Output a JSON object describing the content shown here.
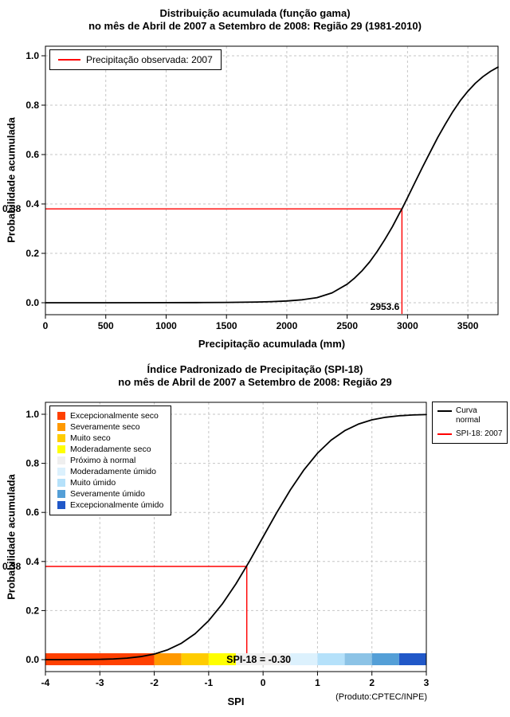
{
  "chart_data": [
    {
      "type": "line",
      "title": "Distribuição acumulada (função gama)",
      "subtitle": "no mês de Abril de 2007 a Setembro de 2008: Região 29 (1981-2010)",
      "xlabel": "Precipitação acumulada (mm)",
      "ylabel": "Probabilidade acumulada",
      "xlim": [
        0,
        3750
      ],
      "ylim": [
        0,
        1
      ],
      "grid": true,
      "xticks": [
        0,
        500,
        1000,
        1500,
        2000,
        2500,
        3000,
        3500
      ],
      "xtick_labels": [
        "0",
        "500",
        "1000",
        "1500",
        "2000",
        "2500",
        "3000",
        "3500"
      ],
      "yticks": [
        0,
        0.2,
        0.4,
        0.6,
        0.8,
        1
      ],
      "ytick_labels": [
        "0.0",
        "0.2",
        "0.4",
        "0.6",
        "0.8",
        "1.0"
      ],
      "legend": [
        {
          "label": "Precipitação observada: 2007",
          "color": "#ff0000"
        }
      ],
      "series": [
        {
          "name": "distribuicao-gama-acumulada",
          "color": "#000000",
          "points": [
            [
              0,
              0
            ],
            [
              500,
              0.0001
            ],
            [
              1000,
              0.0003
            ],
            [
              1250,
              0.0006
            ],
            [
              1500,
              0.0012
            ],
            [
              1625,
              0.0018
            ],
            [
              1750,
              0.0028
            ],
            [
              1875,
              0.0045
            ],
            [
              2000,
              0.0072
            ],
            [
              2125,
              0.0118
            ],
            [
              2250,
              0.0205
            ],
            [
              2375,
              0.0401
            ],
            [
              2500,
              0.0753
            ],
            [
              2562,
              0.1003
            ],
            [
              2625,
              0.1303
            ],
            [
              2688,
              0.166
            ],
            [
              2750,
              0.2083
            ],
            [
              2812,
              0.2559
            ],
            [
              2875,
              0.3085
            ],
            [
              2938,
              0.3669
            ],
            [
              2953.6,
              0.38
            ],
            [
              3000,
              0.4256
            ],
            [
              3062,
              0.4875
            ],
            [
              3125,
              0.5497
            ],
            [
              3188,
              0.6103
            ],
            [
              3250,
              0.6691
            ],
            [
              3312,
              0.7224
            ],
            [
              3375,
              0.7734
            ],
            [
              3438,
              0.8186
            ],
            [
              3500,
              0.856
            ],
            [
              3562,
              0.8888
            ],
            [
              3625,
              0.9154
            ],
            [
              3688,
              0.937
            ],
            [
              3750,
              0.9542
            ]
          ]
        }
      ],
      "marker": {
        "x": 2953.6,
        "y": 0.38,
        "x_label": "2953.6",
        "y_label": "0.38",
        "color": "#ff0000"
      }
    },
    {
      "type": "line",
      "title": "Índice Padronizado de Precipitação (SPI-18)",
      "subtitle": "no mês de Abril de 2007 a Setembro de 2008: Região 29",
      "xlabel": "SPI",
      "ylabel": "Probabilidade acumulada",
      "footer": "(Produto:CPTEC/INPE)",
      "xlim": [
        -4,
        3
      ],
      "ylim": [
        0,
        1
      ],
      "grid": true,
      "xticks": [
        -4,
        -3,
        -2,
        -1,
        0,
        1,
        2,
        3
      ],
      "xtick_labels": [
        "-4",
        "-3",
        "-2",
        "-1",
        "0",
        "1",
        "2",
        "3"
      ],
      "yticks": [
        0,
        0.2,
        0.4,
        0.6,
        0.8,
        1
      ],
      "ytick_labels": [
        "0.0",
        "0.2",
        "0.4",
        "0.6",
        "0.8",
        "1.0"
      ],
      "legend": [
        {
          "lines": [
            "Curva",
            "normal"
          ],
          "color": "#000000"
        },
        {
          "lines": [
            "SPI-18: 2007"
          ],
          "color": "#ff0000"
        }
      ],
      "categories": [
        {
          "label": "Excepcionalmente seco",
          "color": "#ff4000"
        },
        {
          "label": "Severamente seco",
          "color": "#ff9900"
        },
        {
          "label": "Muito seco",
          "color": "#ffcc00"
        },
        {
          "label": "Moderadamente seco",
          "color": "#ffff00"
        },
        {
          "label": "Próximo à normal",
          "color": "#efefef"
        },
        {
          "label": "Moderadamente úmido",
          "color": "#dcf1fd"
        },
        {
          "label": "Muito úmido",
          "color": "#b5e1fa"
        },
        {
          "label": "Severamente úmido",
          "color": "#549fd7"
        },
        {
          "label": "Excepcionalmente úmido",
          "color": "#2158c8"
        }
      ],
      "spi_bar": [
        {
          "from": -4,
          "to": -2,
          "color": "#ff4000"
        },
        {
          "from": -2,
          "to": -1.5,
          "color": "#ff9900"
        },
        {
          "from": -1.5,
          "to": -1,
          "color": "#ffcc00"
        },
        {
          "from": -1,
          "to": -0.5,
          "color": "#ffff00"
        },
        {
          "from": -0.5,
          "to": 0.5,
          "color": "#efefef"
        },
        {
          "from": 0.5,
          "to": 1,
          "color": "#dcf1fd"
        },
        {
          "from": 1,
          "to": 1.5,
          "color": "#b5e1fa"
        },
        {
          "from": 1.5,
          "to": 2,
          "color": "#8cc3e6"
        },
        {
          "from": 2,
          "to": 2.5,
          "color": "#549fd7"
        },
        {
          "from": 2.5,
          "to": 3,
          "color": "#2158c8"
        }
      ],
      "series": [
        {
          "name": "curva-normal",
          "color": "#000000",
          "points": [
            [
              -4,
              0.0
            ],
            [
              -3.75,
              0.0001
            ],
            [
              -3.5,
              0.0002
            ],
            [
              -3.25,
              0.0006
            ],
            [
              -3,
              0.0013
            ],
            [
              -2.75,
              0.003
            ],
            [
              -2.5,
              0.0062
            ],
            [
              -2.25,
              0.0122
            ],
            [
              -2,
              0.0228
            ],
            [
              -1.75,
              0.0401
            ],
            [
              -1.5,
              0.0668
            ],
            [
              -1.25,
              0.1056
            ],
            [
              -1,
              0.1587
            ],
            [
              -0.75,
              0.2266
            ],
            [
              -0.5,
              0.3085
            ],
            [
              -0.25,
              0.4013
            ],
            [
              0,
              0.5
            ],
            [
              0.25,
              0.5987
            ],
            [
              0.5,
              0.6915
            ],
            [
              0.75,
              0.7734
            ],
            [
              1,
              0.8413
            ],
            [
              1.25,
              0.8944
            ],
            [
              1.5,
              0.9332
            ],
            [
              1.75,
              0.9599
            ],
            [
              2,
              0.9772
            ],
            [
              2.25,
              0.9878
            ],
            [
              2.5,
              0.9938
            ],
            [
              2.75,
              0.997
            ],
            [
              3,
              0.9987
            ]
          ]
        }
      ],
      "marker": {
        "x": -0.3,
        "y": 0.38,
        "y_label": "0.38",
        "annotation": "SPI-18 = -0.30",
        "color": "#ff0000"
      }
    }
  ]
}
